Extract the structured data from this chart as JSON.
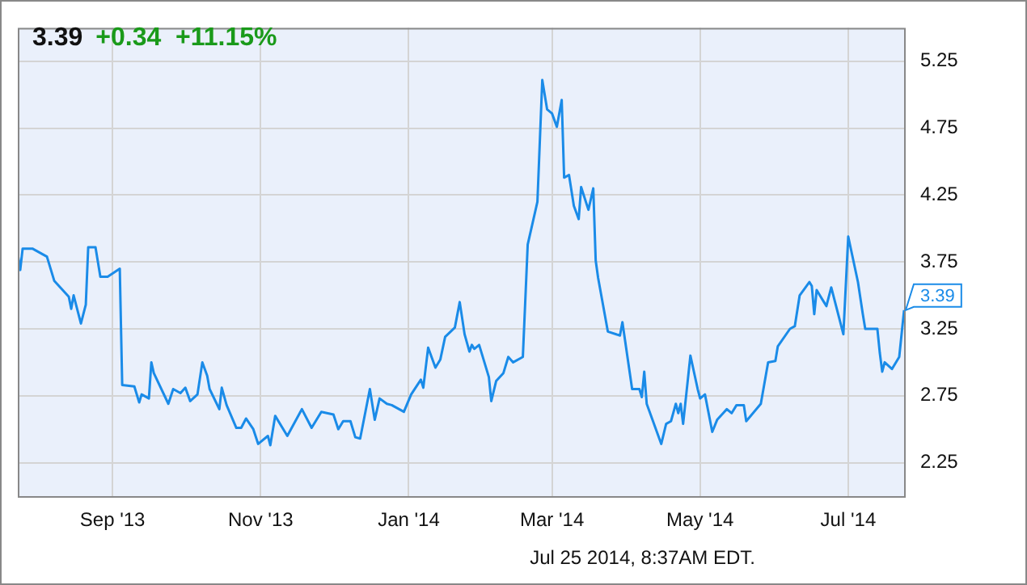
{
  "chart_data": {
    "type": "line",
    "title": "3.39",
    "subtitle": "+0.34  +11.15%",
    "annotations": [
      "Jul 25 2014, 8:37AM EDT."
    ],
    "x": [
      "2013-07-24",
      "2013-07-25",
      "2013-07-26",
      "2013-07-30",
      "2013-08-05",
      "2013-08-08",
      "2013-08-14",
      "2013-08-15",
      "2013-08-16",
      "2013-08-19",
      "2013-08-21",
      "2013-08-22",
      "2013-08-25",
      "2013-08-27",
      "2013-08-30",
      "2013-09-04",
      "2013-09-05",
      "2013-09-10",
      "2013-09-12",
      "2013-09-13",
      "2013-09-16",
      "2013-09-17",
      "2013-09-18",
      "2013-09-24",
      "2013-09-26",
      "2013-09-29",
      "2013-10-01",
      "2013-10-03",
      "2013-10-06",
      "2013-10-08",
      "2013-10-10",
      "2013-10-11",
      "2013-10-15",
      "2013-10-16",
      "2013-10-18",
      "2013-10-22",
      "2013-10-24",
      "2013-10-26",
      "2013-10-29",
      "2013-10-31",
      "2013-11-04",
      "2013-11-05",
      "2013-11-07",
      "2013-11-12",
      "2013-11-18",
      "2013-11-22",
      "2013-11-26",
      "2013-12-01",
      "2013-12-03",
      "2013-12-05",
      "2013-12-08",
      "2013-12-10",
      "2013-12-12",
      "2013-12-16",
      "2013-12-18",
      "2013-12-20",
      "2013-12-23",
      "2013-12-25",
      "2013-12-30",
      "2014-01-02",
      "2014-01-06",
      "2014-01-07",
      "2014-01-09",
      "2014-01-12",
      "2014-01-14",
      "2014-01-16",
      "2014-01-20",
      "2014-01-22",
      "2014-01-24",
      "2014-01-26",
      "2014-01-27",
      "2014-01-28",
      "2014-01-30",
      "2014-02-03",
      "2014-02-04",
      "2014-02-06",
      "2014-02-09",
      "2014-02-11",
      "2014-02-13",
      "2014-02-17",
      "2014-02-19",
      "2014-02-23",
      "2014-02-25",
      "2014-02-27",
      "2014-03-01",
      "2014-03-03",
      "2014-03-05",
      "2014-03-06",
      "2014-03-08",
      "2014-03-10",
      "2014-03-12",
      "2014-03-13",
      "2014-03-16",
      "2014-03-18",
      "2014-03-19",
      "2014-03-20",
      "2014-03-24",
      "2014-03-29",
      "2014-03-30",
      "2014-04-03",
      "2014-04-06",
      "2014-04-07",
      "2014-04-08",
      "2014-04-09",
      "2014-04-15",
      "2014-04-17",
      "2014-04-19",
      "2014-04-21",
      "2014-04-22",
      "2014-04-23",
      "2014-04-24",
      "2014-04-27",
      "2014-04-30",
      "2014-05-01",
      "2014-05-03",
      "2014-05-06",
      "2014-05-08",
      "2014-05-12",
      "2014-05-14",
      "2014-05-16",
      "2014-05-19",
      "2014-05-20",
      "2014-05-26",
      "2014-05-29",
      "2014-06-01",
      "2014-06-02",
      "2014-06-07",
      "2014-06-09",
      "2014-06-11",
      "2014-06-15",
      "2014-06-16",
      "2014-06-17",
      "2014-06-18",
      "2014-06-21",
      "2014-06-22",
      "2014-06-24",
      "2014-06-29",
      "2014-07-01",
      "2014-07-05",
      "2014-07-07",
      "2014-07-08",
      "2014-07-13",
      "2014-07-14",
      "2014-07-15",
      "2014-07-16",
      "2014-07-19",
      "2014-07-22",
      "2014-07-24"
    ],
    "values": [
      3.81,
      3.69,
      3.85,
      3.85,
      3.79,
      3.61,
      3.49,
      3.4,
      3.5,
      3.29,
      3.43,
      3.86,
      3.86,
      3.64,
      3.64,
      3.7,
      2.83,
      2.82,
      2.7,
      2.76,
      2.73,
      3.0,
      2.92,
      2.69,
      2.8,
      2.77,
      2.81,
      2.71,
      2.76,
      3.0,
      2.9,
      2.8,
      2.65,
      2.81,
      2.68,
      2.51,
      2.51,
      2.58,
      2.5,
      2.39,
      2.45,
      2.38,
      2.6,
      2.45,
      2.65,
      2.51,
      2.63,
      2.61,
      2.5,
      2.56,
      2.56,
      2.44,
      2.43,
      2.8,
      2.57,
      2.73,
      2.69,
      2.68,
      2.63,
      2.76,
      2.87,
      2.81,
      3.11,
      2.96,
      3.02,
      3.19,
      3.26,
      3.45,
      3.21,
      3.08,
      3.13,
      3.1,
      3.13,
      2.89,
      2.71,
      2.86,
      2.92,
      3.04,
      3.0,
      3.04,
      3.88,
      4.2,
      5.11,
      4.89,
      4.86,
      4.76,
      4.96,
      4.38,
      4.4,
      4.17,
      4.07,
      4.31,
      4.14,
      4.3,
      3.76,
      3.63,
      3.23,
      3.2,
      3.3,
      2.8,
      2.8,
      2.74,
      2.93,
      2.69,
      2.39,
      2.54,
      2.56,
      2.69,
      2.62,
      2.69,
      2.54,
      3.05,
      2.8,
      2.73,
      2.76,
      2.48,
      2.57,
      2.65,
      2.62,
      2.68,
      2.68,
      2.56,
      2.69,
      3.0,
      3.01,
      3.12,
      3.25,
      3.27,
      3.5,
      3.6,
      3.57,
      3.36,
      3.54,
      3.45,
      3.42,
      3.56,
      3.21,
      3.94,
      3.6,
      3.36,
      3.25,
      3.25,
      3.07,
      2.93,
      3.0,
      2.95,
      3.04,
      3.39
    ],
    "value_labels": [
      null,
      null,
      null,
      null,
      null,
      null,
      null,
      null,
      null,
      null,
      null,
      null,
      null,
      null,
      null,
      null,
      null,
      null,
      null,
      null,
      null,
      null,
      null,
      null,
      null,
      null,
      null,
      null,
      null,
      null,
      null,
      null,
      null,
      null,
      null,
      null,
      null,
      null,
      null,
      null,
      null,
      null,
      null,
      null,
      null,
      null,
      null,
      null,
      null,
      null,
      null,
      null,
      null,
      null,
      null,
      null,
      null,
      null,
      null,
      null,
      null,
      null,
      null,
      null,
      null,
      null,
      null,
      null,
      null,
      null,
      null,
      null,
      null,
      null,
      null,
      null,
      null,
      null,
      null,
      null,
      null,
      null,
      null,
      null,
      null,
      null,
      null,
      null,
      null,
      null,
      null,
      null,
      null,
      null,
      null,
      null,
      null,
      null,
      null,
      null,
      null,
      null,
      null,
      null,
      null,
      null,
      null,
      null,
      null,
      null,
      null,
      null,
      null,
      null,
      null,
      null,
      null,
      null,
      null,
      null,
      null,
      null,
      null,
      null,
      null,
      null,
      null,
      null,
      null,
      null,
      null,
      null,
      null,
      null,
      null,
      null,
      null,
      null,
      null,
      null,
      null,
      null,
      null,
      null,
      null,
      null,
      null,
      "3.39"
    ],
    "color": "#1a8be8",
    "xlim": [
      "2013-07-24",
      "2014-07-24"
    ],
    "xticks": [
      {
        "value": "2013-09-01",
        "label": "Sep '13"
      },
      {
        "value": "2013-11-01",
        "label": "Nov '13"
      },
      {
        "value": "2014-01-01",
        "label": "Jan '14"
      },
      {
        "value": "2014-03-01",
        "label": "Mar '14"
      },
      {
        "value": "2014-05-01",
        "label": "May '14"
      },
      {
        "value": "2014-07-01",
        "label": "Jul '14"
      }
    ],
    "ylim": [
      2.0,
      5.5
    ],
    "yticks": [
      2.25,
      2.75,
      3.25,
      3.75,
      4.25,
      4.75,
      5.25
    ],
    "grid": true
  }
}
